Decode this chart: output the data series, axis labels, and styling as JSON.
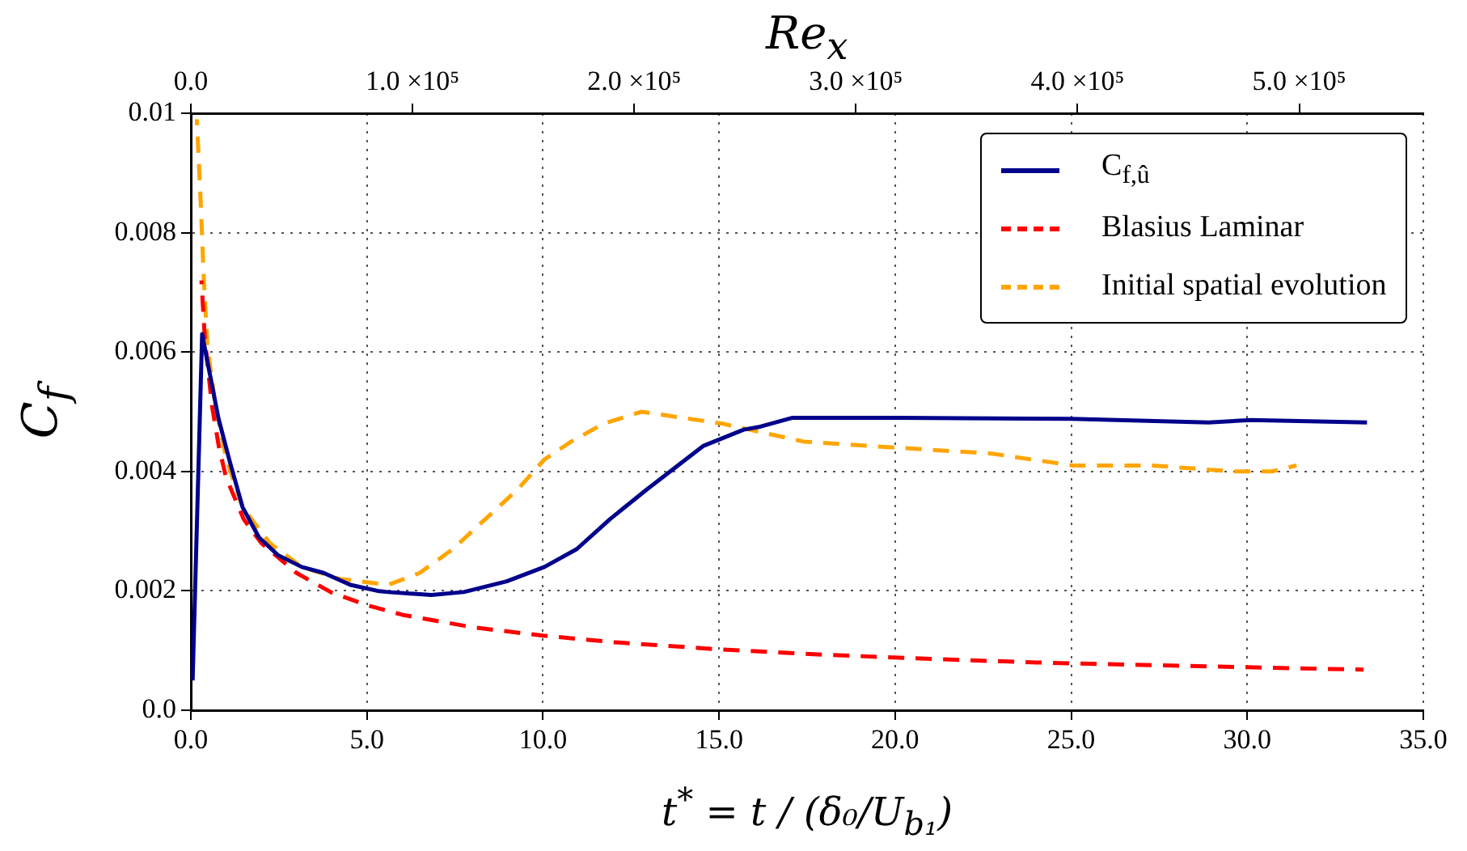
{
  "chart_data": {
    "type": "line",
    "xlabel": "t$^{*}$ = t / (δ₀/U$_{b₁}$)",
    "ylabel": "C$_{f}$",
    "x2label": "Re$_{x}$",
    "xlim": [
      0,
      35
    ],
    "xticks": [
      {
        "value": 0,
        "label": "0.0"
      },
      {
        "value": 5,
        "label": "5.0"
      },
      {
        "value": 10,
        "label": "10.0"
      },
      {
        "value": 15,
        "label": "15.0"
      },
      {
        "value": 20,
        "label": "20.0"
      },
      {
        "value": 25,
        "label": "25.0"
      },
      {
        "value": 30,
        "label": "30.0"
      },
      {
        "value": 35,
        "label": "35.0"
      }
    ],
    "ylim": [
      0,
      0.01
    ],
    "yticks": [
      {
        "value": 0,
        "label": "0.0"
      },
      0.002,
      0.004,
      0.006,
      0.008,
      0.01
    ],
    "x2lim": [
      0,
      556000
    ],
    "x2ticks": [
      {
        "value": 0,
        "label": "0.0"
      },
      {
        "value": 100000,
        "label": "1.0 ×10⁵"
      },
      {
        "value": 200000,
        "label": "2.0 ×10⁵"
      },
      {
        "value": 300000,
        "label": "3.0 ×10⁵"
      },
      {
        "value": 400000,
        "label": "4.0 ×10⁵"
      },
      {
        "value": 500000,
        "label": "5.0 ×10⁵"
      }
    ],
    "grid": true,
    "legend": "top right",
    "marker": "none",
    "series": [
      {
        "name": "C$_{f,û}$",
        "color": "#00008b",
        "line_style": "solid",
        "x": [
          0.05,
          0.32,
          0.55,
          0.78,
          1.09,
          1.47,
          1.93,
          2.47,
          3.15,
          3.77,
          4.53,
          5.3,
          5.6,
          6.83,
          7.75,
          8.97,
          10.04,
          10.96,
          11.9,
          12.95,
          14.56,
          15.7,
          16.17,
          17.09,
          20.07,
          25.0,
          28.9,
          30.1,
          33.4
        ],
        "values": [
          0.0005,
          0.0063,
          0.0056,
          0.0049,
          0.0042,
          0.0034,
          0.0029,
          0.0026,
          0.0024,
          0.0023,
          0.0021,
          0.002,
          0.00198,
          0.00193,
          0.00198,
          0.00216,
          0.0024,
          0.0027,
          0.0032,
          0.0037,
          0.00443,
          0.0047,
          0.00475,
          0.0049,
          0.0049,
          0.00488,
          0.00482,
          0.00486,
          0.00482
        ]
      },
      {
        "name": "Blasius Laminar",
        "color": "#ff0000",
        "line_style": "dashed",
        "x": [
          0.3,
          0.4,
          0.6,
          0.8,
          1.0,
          1.5,
          2,
          3,
          4,
          5,
          6,
          8,
          10,
          12,
          15,
          18,
          21,
          24,
          27,
          30,
          33.3
        ],
        "values": [
          0.0072,
          0.0062,
          0.0051,
          0.0044,
          0.0039,
          0.0032,
          0.0028,
          0.0023,
          0.00197,
          0.00176,
          0.0016,
          0.00139,
          0.00125,
          0.00114,
          0.00102,
          0.00093,
          0.00086,
          0.0008,
          0.00076,
          0.00072,
          0.00068
        ]
      },
      {
        "name": "Initial spatial evolution",
        "color": "#ffa500",
        "line_style": "dashed",
        "x": [
          0.17,
          0.28,
          0.37,
          0.47,
          0.7,
          1.01,
          1.47,
          2.24,
          3.15,
          4.23,
          5.6,
          6.5,
          7.44,
          8.36,
          9.28,
          10.04,
          10.8,
          11.72,
          12.8,
          15.1,
          17.4,
          20.0,
          22.74,
          25.04,
          27.3,
          29.6,
          30.7,
          31.4
        ],
        "values": [
          0.0099,
          0.0085,
          0.0072,
          0.0061,
          0.0051,
          0.0042,
          0.0034,
          0.0028,
          0.0024,
          0.0022,
          0.0021,
          0.0023,
          0.0027,
          0.0032,
          0.0037,
          0.0042,
          0.0045,
          0.0048,
          0.005,
          0.0048,
          0.0045,
          0.0044,
          0.0043,
          0.0041,
          0.0041,
          0.004,
          0.004,
          0.0041
        ]
      }
    ]
  }
}
